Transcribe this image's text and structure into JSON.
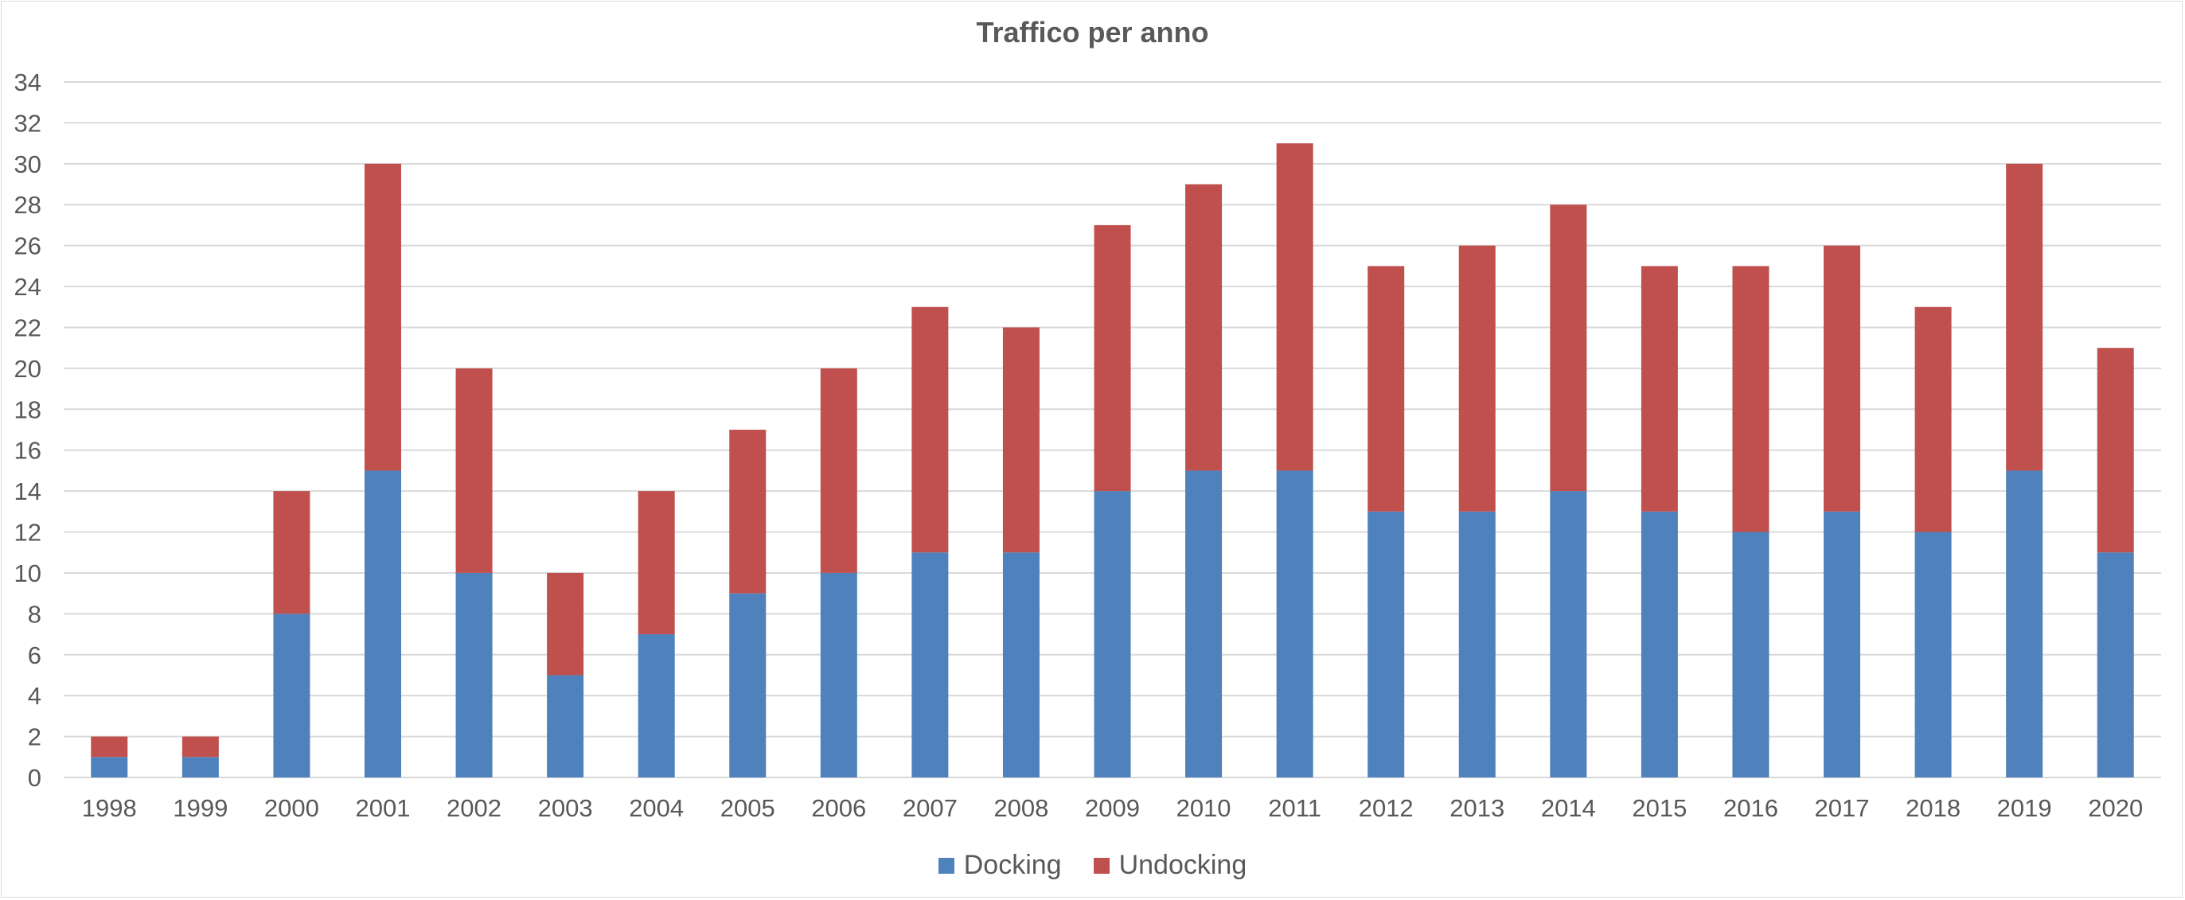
{
  "chart_data": {
    "type": "bar",
    "stacked": true,
    "title": "Traffico per anno",
    "xlabel": "",
    "ylabel": "",
    "ylim": [
      0,
      34
    ],
    "ytick_step": 2,
    "grid": true,
    "legend_position": "bottom",
    "categories": [
      "1998",
      "1999",
      "2000",
      "2001",
      "2002",
      "2003",
      "2004",
      "2005",
      "2006",
      "2007",
      "2008",
      "2009",
      "2010",
      "2011",
      "2012",
      "2013",
      "2014",
      "2015",
      "2016",
      "2017",
      "2018",
      "2019",
      "2020"
    ],
    "series": [
      {
        "name": "Docking",
        "color": "#4f81bd",
        "values": [
          1,
          1,
          8,
          15,
          10,
          5,
          7,
          9,
          10,
          11,
          11,
          14,
          15,
          15,
          13,
          13,
          14,
          13,
          12,
          13,
          12,
          15,
          11
        ]
      },
      {
        "name": "Undocking",
        "color": "#c0504d",
        "values": [
          1,
          1,
          6,
          15,
          10,
          5,
          7,
          8,
          10,
          12,
          11,
          13,
          14,
          16,
          12,
          13,
          14,
          12,
          13,
          13,
          11,
          15,
          10
        ]
      }
    ],
    "gridline_color": "#d9d9d9"
  }
}
